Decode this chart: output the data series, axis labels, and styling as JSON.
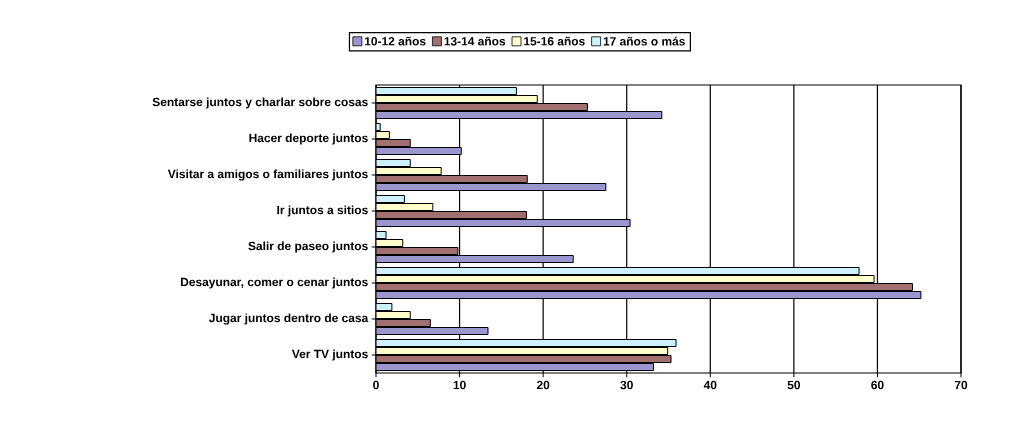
{
  "chart_data": {
    "type": "bar",
    "orientation": "horizontal",
    "categories": [
      "Sentarse juntos y charlar sobre cosas",
      "Hacer deporte juntos",
      "Visitar a amigos o familiares juntos",
      "Ir juntos a sitios",
      "Salir de paseo juntos",
      "Desayunar, comer o cenar juntos",
      "Jugar juntos dentro de casa",
      "Ver TV juntos"
    ],
    "series": [
      {
        "name": "10-12 años",
        "color": "#9b96d0",
        "values": [
          34.2,
          10.2,
          27.5,
          30.4,
          23.6,
          65.2,
          13.4,
          33.2
        ]
      },
      {
        "name": "13-14 años",
        "color": "#a07070",
        "values": [
          25.3,
          4.1,
          18.1,
          18.0,
          9.8,
          64.2,
          6.5,
          35.3
        ]
      },
      {
        "name": "15-16 años",
        "color": "#ffffcc",
        "values": [
          19.3,
          1.6,
          7.8,
          6.8,
          3.2,
          59.6,
          4.1,
          34.9
        ]
      },
      {
        "name": "17 años o más",
        "color": "#ccf2ff",
        "values": [
          16.8,
          0.5,
          4.1,
          3.4,
          1.2,
          57.8,
          1.9,
          35.9
        ]
      }
    ],
    "xlim": [
      0,
      70
    ],
    "xticks": [
      0,
      10,
      20,
      30,
      40,
      50,
      60,
      70
    ],
    "grid": "x",
    "legend": "top"
  }
}
